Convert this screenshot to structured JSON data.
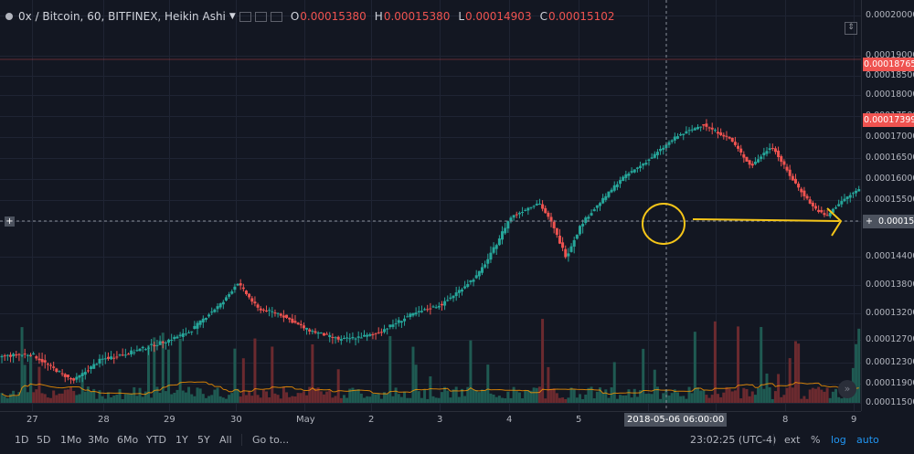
{
  "legend": {
    "symbol": "0x / Bitcoin, 60, BITFINEX, Heikin Ashi",
    "open_label": "O",
    "open_value": "0.00015380",
    "high_label": "H",
    "high_value": "0.00015380",
    "low_label": "L",
    "low_value": "0.00014903",
    "close_label": "C",
    "close_value": "0.00015102"
  },
  "price_axis": {
    "ticks": [
      "0.00020000",
      "0.00019000",
      "0.00018500",
      "0.00018000",
      "0.00017500",
      "0.00017000",
      "0.00016500",
      "0.00016000",
      "0.00015500",
      "0.00015000",
      "0.00014400",
      "0.00013800",
      "0.00013200",
      "0.00012700",
      "0.00012300",
      "0.00011900",
      "0.00011500"
    ],
    "high_line_label": "0.00018765",
    "last_price_label": "0.00017399",
    "crosshair_label": "0.00015131"
  },
  "time_axis": {
    "ticks": [
      "27",
      "28",
      "29",
      "30",
      "May",
      "2",
      "3",
      "4",
      "5",
      "6",
      "7",
      "8",
      "9"
    ],
    "crosshair_label": "2018-05-06 06:00:00"
  },
  "bottom_bar": {
    "ranges": [
      "1D",
      "5D",
      "1Mo",
      "3Mo",
      "6Mo",
      "YTD",
      "1Y",
      "5Y",
      "All"
    ],
    "goto": "Go to...",
    "clock": "23:02:25 (UTC-4)",
    "ext": "ext",
    "percent": "%",
    "log": "log",
    "auto": "auto"
  },
  "annotation": {
    "circle_color": "#f5c518",
    "arrow_color": "#f5c518"
  },
  "colors": {
    "up": "#26a69a",
    "down": "#ef5350",
    "volume_ma": "#ff9800",
    "background": "#131722"
  },
  "chart_data": {
    "type": "candlestick",
    "title": "0x / Bitcoin, 60, BITFINEX, Heikin Ashi",
    "xlabel": "",
    "ylabel": "",
    "x_categories": [
      "27",
      "28",
      "29",
      "30",
      "May",
      "2",
      "3",
      "4",
      "5",
      "6",
      "7",
      "8",
      "9"
    ],
    "y_range": [
      0.000115,
      0.0002
    ],
    "close_trajectory": [
      [
        26.4,
        0.000124
      ],
      [
        27.0,
        0.0001245
      ],
      [
        27.6,
        0.0001195
      ],
      [
        28.0,
        0.0001235
      ],
      [
        28.5,
        0.000125
      ],
      [
        29.0,
        0.000127
      ],
      [
        29.3,
        0.0001285
      ],
      [
        29.8,
        0.0001345
      ],
      [
        30.0,
        0.0001385
      ],
      [
        30.3,
        0.000133
      ],
      [
        30.6,
        0.000132
      ],
      [
        31.0,
        0.000129
      ],
      [
        31.5,
        0.000127
      ],
      [
        32.0,
        0.000128
      ],
      [
        32.5,
        0.0001315
      ],
      [
        33.0,
        0.000134
      ],
      [
        33.5,
        0.00014
      ],
      [
        34.0,
        0.000151
      ],
      [
        34.4,
        0.0001545
      ],
      [
        34.8,
        0.000144
      ],
      [
        35.0,
        0.000149
      ],
      [
        35.3,
        0.0001545
      ],
      [
        35.6,
        0.00016
      ],
      [
        36.0,
        0.0001645
      ],
      [
        36.4,
        0.00017
      ],
      [
        36.8,
        0.000173
      ],
      [
        37.2,
        0.0001695
      ],
      [
        37.5,
        0.000163
      ],
      [
        37.8,
        0.000168
      ],
      [
        38.1,
        0.00016
      ],
      [
        38.4,
        0.0001535
      ],
      [
        38.6,
        0.000151
      ],
      [
        38.8,
        0.0001545
      ],
      [
        39.2,
        0.000159
      ],
      [
        39.6,
        0.000163
      ],
      [
        40.0,
        0.000166
      ],
      [
        40.4,
        0.000174
      ],
      [
        40.8,
        0.000182
      ],
      [
        41.0,
        0.000179
      ],
      [
        41.3,
        0.000185
      ],
      [
        41.5,
        0.000191
      ],
      [
        41.8,
        0.000185
      ],
      [
        42.1,
        0.00018
      ],
      [
        42.4,
        0.000176
      ],
      [
        42.7,
        0.00018
      ],
      [
        43.0,
        0.000174
      ]
    ],
    "last_price": 0.00017399,
    "crosshair_price": 0.00015131,
    "crosshair_time": "2018-05-06 06:00:00",
    "volume": {
      "shown": true,
      "with_moving_average": true
    },
    "grid": true
  }
}
